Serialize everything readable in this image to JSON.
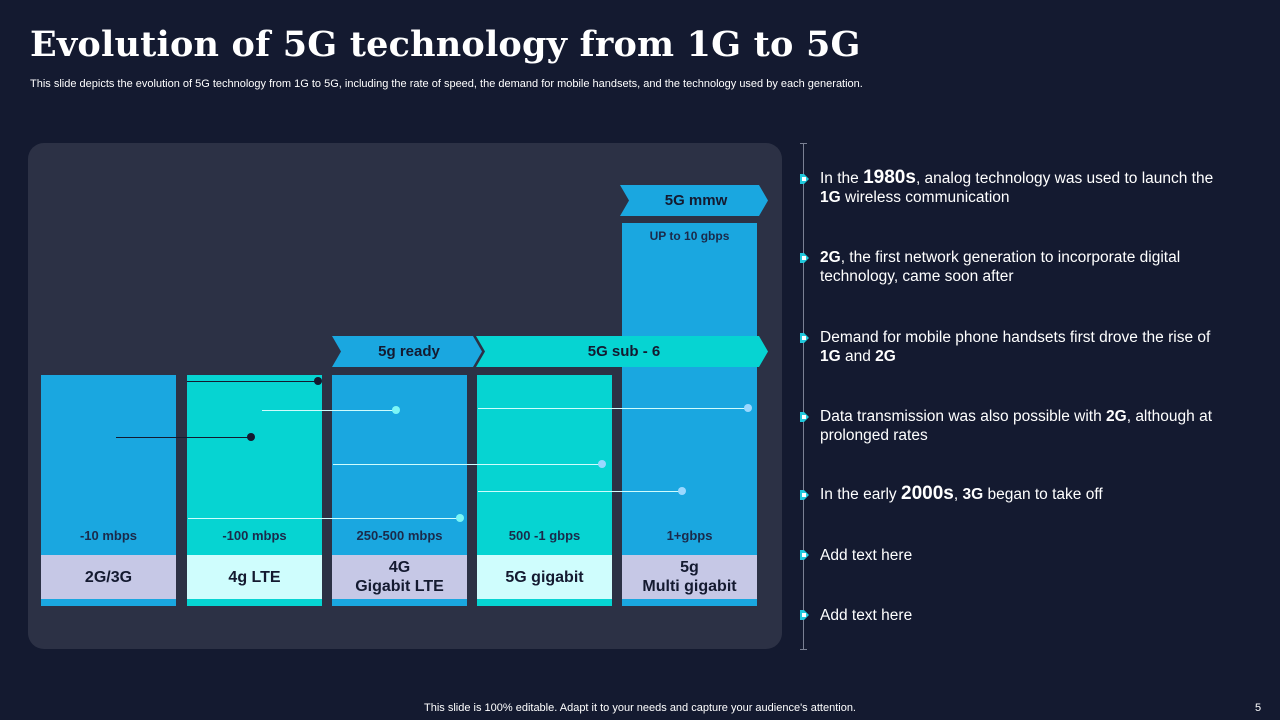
{
  "title": "Evolution of 5G technology from 1G to 5G",
  "subtitle": "This slide depicts the evolution of 5G technology from 1G to 5G, including the rate of speed, the demand for mobile handsets, and the technology used by each generation.",
  "chart": {
    "columns": [
      {
        "speed": "-10 mbps",
        "label": "2G/3G"
      },
      {
        "speed": "-100 mbps",
        "label": "4g LTE"
      },
      {
        "speed": "250-500 mbps",
        "label": "4G\nGigabit LTE"
      },
      {
        "speed": "500 -1 gbps",
        "label": "5G gigabit"
      },
      {
        "speed": "1+gbps",
        "label": "5g\nMulti gigabit"
      }
    ],
    "banners": {
      "fiveg_mmw": "5G mmw",
      "fiveg_ready": "5g ready",
      "fiveg_sub6": "5G sub - 6",
      "up_to": "UP to 10 gbps"
    }
  },
  "bullets": [
    {
      "pre": "In the ",
      "em": "1980s",
      "mid": ", analog technology  was used to launch  the ",
      "strong": "1G",
      "post": " wireless communication"
    },
    {
      "strong": "2G",
      "post": ", the first network  generation to incorporate digital technology,  came soon after"
    },
    {
      "pre": "Demand for mobile phone handsets first drove the rise of ",
      "strong": "1G",
      "mid": " and ",
      "strong2": "2G"
    },
    {
      "pre": "Data transmission was also possible with ",
      "strong": "2G",
      "post": ", although  at prolonged rates"
    },
    {
      "pre": "In the early ",
      "em": "2000s",
      "mid": ", ",
      "strong": "3G",
      "post": " began to take off"
    },
    {
      "text": "Add text here"
    },
    {
      "text": "Add text here"
    }
  ],
  "footer": "This slide is 100% editable. Adapt it to your needs and capture your audience's attention.",
  "page_number": "5",
  "colors": {
    "background": "#141a30",
    "panel": "#2c3145",
    "blue": "#1aa7e0",
    "teal": "#06d4d2",
    "lavender": "#c6c8e6",
    "mint": "#cffdfd",
    "marker": "#21c9dc"
  }
}
